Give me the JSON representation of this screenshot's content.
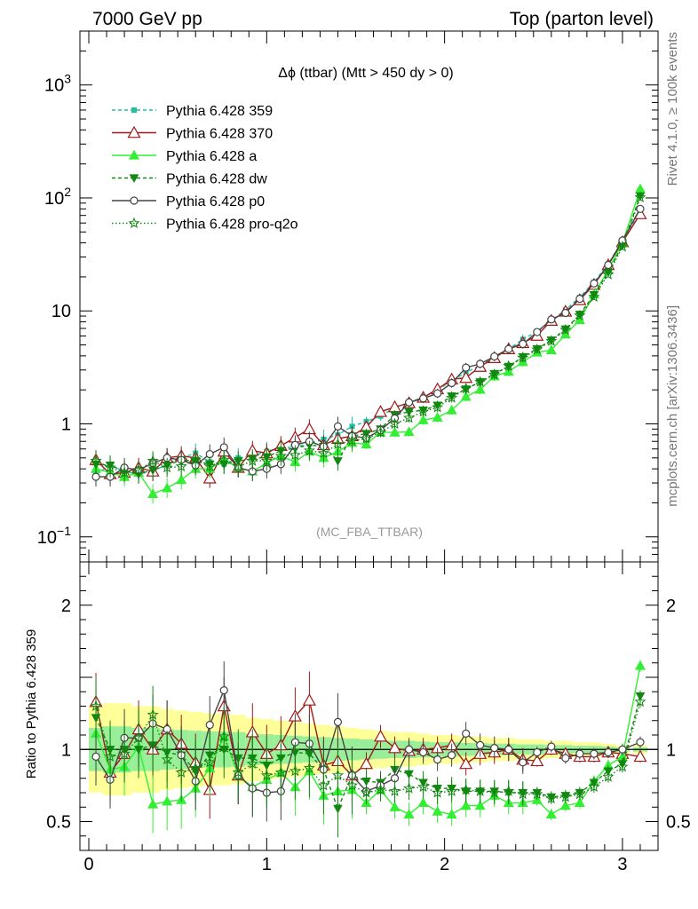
{
  "header": {
    "left": "7000 GeV pp",
    "right": "Top (parton level)"
  },
  "side_labels": {
    "rivet": "Rivet 4.1.0, ≥ 100k events",
    "mcplots": "mcplots.cern.ch [arXiv:1306.3436]"
  },
  "chart_data": {
    "type": "line",
    "title": "Δϕ (ttbar) (Mtt > 450 dy > 0)",
    "analysis_tag": "(MC_FBA_TTBAR)",
    "xlim": [
      -0.05,
      3.2
    ],
    "xticks": [
      0,
      1,
      2,
      3
    ],
    "top_panel": {
      "yscale": "log",
      "ylim": [
        0.06,
        3000
      ],
      "yticks": [
        {
          "value": 1000,
          "label": "10",
          "sup": "3"
        },
        {
          "value": 100,
          "label": "10",
          "sup": "2"
        },
        {
          "value": 10,
          "label": "10",
          "sup": ""
        },
        {
          "value": 1,
          "label": "1",
          "sup": ""
        },
        {
          "value": 0.1,
          "label": "10",
          "sup": "−1"
        }
      ]
    },
    "ratio_panel": {
      "ylabel": "Ratio to Pythia 6.428 359",
      "ylim": [
        0.3,
        2.3
      ],
      "yticks": [
        {
          "value": 0.5,
          "label": "0.5"
        },
        {
          "value": 1,
          "label": "1"
        },
        {
          "value": 2,
          "label": "2"
        }
      ]
    },
    "x": [
      0.04,
      0.12,
      0.2,
      0.28,
      0.36,
      0.44,
      0.52,
      0.6,
      0.68,
      0.76,
      0.84,
      0.92,
      1.0,
      1.08,
      1.16,
      1.24,
      1.32,
      1.4,
      1.48,
      1.56,
      1.64,
      1.72,
      1.8,
      1.88,
      1.96,
      2.04,
      2.12,
      2.2,
      2.28,
      2.36,
      2.44,
      2.52,
      2.6,
      2.68,
      2.76,
      2.84,
      2.92,
      3.0,
      3.1
    ],
    "band_halfwidth": [
      0.3,
      0.32,
      0.32,
      0.3,
      0.3,
      0.28,
      0.27,
      0.26,
      0.25,
      0.25,
      0.24,
      0.22,
      0.21,
      0.2,
      0.19,
      0.18,
      0.17,
      0.16,
      0.15,
      0.14,
      0.13,
      0.12,
      0.12,
      0.11,
      0.1,
      0.1,
      0.09,
      0.09,
      0.08,
      0.08,
      0.07,
      0.07,
      0.06,
      0.06,
      0.05,
      0.05,
      0.04,
      0.03,
      0.03
    ],
    "series": [
      {
        "name": "Pythia 6.428 359",
        "color": "#20c0a0",
        "dash": "4,3",
        "marker": "square",
        "values": [
          0.36,
          0.43,
          0.38,
          0.36,
          0.38,
          0.44,
          0.5,
          0.55,
          0.46,
          0.44,
          0.5,
          0.52,
          0.57,
          0.62,
          0.62,
          0.67,
          0.73,
          0.8,
          0.95,
          1.05,
          1.17,
          1.4,
          1.55,
          1.72,
          2.0,
          2.4,
          2.85,
          3.3,
          3.9,
          4.6,
          5.6,
          6.6,
          8.2,
          10.2,
          13.2,
          18.0,
          26.0,
          42.0,
          76.0
        ],
        "ratio": [
          1.0,
          1.0,
          1.0,
          1.0,
          1.0,
          1.0,
          1.0,
          1.0,
          1.0,
          1.0,
          1.0,
          1.0,
          1.0,
          1.0,
          1.0,
          1.0,
          1.0,
          1.0,
          1.0,
          1.0,
          1.0,
          1.0,
          1.0,
          1.0,
          1.0,
          1.0,
          1.0,
          1.0,
          1.0,
          1.0,
          1.0,
          1.0,
          1.0,
          1.0,
          1.0,
          1.0,
          1.0,
          1.0,
          1.0
        ]
      },
      {
        "name": "Pythia 6.428 370",
        "color": "#a01818",
        "dash": "",
        "marker": "triangle-open",
        "values": [
          0.48,
          0.36,
          0.37,
          0.41,
          0.38,
          0.5,
          0.52,
          0.5,
          0.33,
          0.57,
          0.41,
          0.58,
          0.55,
          0.64,
          0.76,
          0.9,
          0.65,
          0.74,
          0.78,
          0.94,
          1.28,
          1.41,
          1.53,
          1.71,
          2.03,
          2.48,
          2.56,
          3.21,
          3.84,
          4.6,
          5.2,
          6.05,
          8.2,
          9.9,
          12.5,
          17.1,
          25.5,
          40.7,
          72.0
        ],
        "ratio": [
          1.33,
          0.84,
          0.97,
          1.14,
          1.0,
          1.14,
          1.04,
          0.91,
          0.72,
          1.3,
          0.82,
          1.12,
          0.97,
          1.03,
          1.23,
          1.34,
          0.89,
          0.92,
          0.82,
          0.9,
          1.09,
          1.01,
          0.99,
          1.0,
          1.01,
          1.03,
          0.9,
          0.97,
          0.98,
          1.0,
          0.93,
          0.92,
          1.0,
          0.97,
          0.95,
          0.95,
          0.98,
          0.97,
          0.95
        ]
      },
      {
        "name": "Pythia 6.428 a",
        "color": "#33ee33",
        "dash": "",
        "marker": "triangle",
        "values": [
          0.4,
          0.37,
          0.34,
          0.37,
          0.24,
          0.27,
          0.32,
          0.4,
          0.4,
          0.48,
          0.41,
          0.38,
          0.45,
          0.52,
          0.46,
          0.57,
          0.5,
          0.57,
          0.68,
          0.66,
          0.84,
          0.84,
          0.85,
          1.08,
          1.14,
          1.32,
          1.74,
          2.01,
          2.64,
          2.9,
          3.53,
          4.29,
          4.5,
          6.2,
          8.3,
          14.0,
          23.0,
          40.0,
          120.0
        ],
        "ratio": [
          1.11,
          0.86,
          0.88,
          1.02,
          0.62,
          0.64,
          0.65,
          0.73,
          0.87,
          1.09,
          0.82,
          0.74,
          0.79,
          0.84,
          0.74,
          0.85,
          0.68,
          0.71,
          0.72,
          0.63,
          0.72,
          0.6,
          0.55,
          0.63,
          0.57,
          0.55,
          0.61,
          0.61,
          0.68,
          0.63,
          0.63,
          0.65,
          0.55,
          0.61,
          0.63,
          0.78,
          0.89,
          0.95,
          1.58
        ]
      },
      {
        "name": "Pythia 6.428 dw",
        "color": "#118811",
        "dash": "4,3",
        "marker": "triangle-down",
        "values": [
          0.44,
          0.43,
          0.38,
          0.36,
          0.39,
          0.43,
          0.48,
          0.47,
          0.44,
          0.44,
          0.47,
          0.49,
          0.51,
          0.58,
          0.61,
          0.65,
          0.63,
          0.47,
          0.78,
          0.82,
          0.9,
          1.2,
          1.28,
          1.32,
          1.46,
          1.76,
          2.03,
          2.35,
          2.78,
          3.22,
          3.92,
          4.62,
          5.5,
          6.9,
          9.3,
          13.9,
          22.0,
          38.0,
          104.0
        ],
        "ratio": [
          1.22,
          1.0,
          1.0,
          1.0,
          1.03,
          0.98,
          0.96,
          0.85,
          0.96,
          1.0,
          0.94,
          0.94,
          0.89,
          0.94,
          0.98,
          0.97,
          0.86,
          0.59,
          0.82,
          0.78,
          0.77,
          0.86,
          0.83,
          0.77,
          0.73,
          0.73,
          0.71,
          0.71,
          0.71,
          0.7,
          0.7,
          0.7,
          0.67,
          0.68,
          0.7,
          0.77,
          0.85,
          0.9,
          1.37
        ]
      },
      {
        "name": "Pythia 6.428 p0",
        "color": "#444444",
        "dash": "",
        "marker": "circle-open",
        "values": [
          0.34,
          0.34,
          0.41,
          0.39,
          0.45,
          0.5,
          0.48,
          0.43,
          0.54,
          0.62,
          0.41,
          0.38,
          0.4,
          0.44,
          0.65,
          0.7,
          0.63,
          0.95,
          0.78,
          0.75,
          0.88,
          1.12,
          1.55,
          1.68,
          1.86,
          2.3,
          3.15,
          3.4,
          3.95,
          4.6,
          5.1,
          6.5,
          8.4,
          9.6,
          12.8,
          17.5,
          25.5,
          42.0,
          80.0
        ],
        "ratio": [
          0.95,
          0.79,
          1.08,
          1.08,
          1.18,
          1.14,
          0.96,
          0.78,
          1.17,
          1.41,
          0.82,
          0.73,
          0.7,
          0.71,
          1.05,
          1.04,
          0.86,
          1.19,
          0.82,
          0.71,
          0.75,
          0.8,
          1.0,
          0.98,
          0.93,
          0.96,
          1.11,
          1.03,
          1.01,
          1.0,
          0.91,
          0.98,
          1.02,
          0.94,
          0.97,
          0.97,
          0.98,
          1.0,
          1.05
        ]
      },
      {
        "name": "Pythia 6.428 pro-q2o",
        "color": "#118811",
        "dash": "1.5,2.5",
        "marker": "star-open",
        "values": [
          0.47,
          0.41,
          0.37,
          0.39,
          0.47,
          0.41,
          0.42,
          0.48,
          0.42,
          0.48,
          0.42,
          0.47,
          0.47,
          0.52,
          0.53,
          0.58,
          0.55,
          0.66,
          0.71,
          0.74,
          0.84,
          1.0,
          1.13,
          1.28,
          1.4,
          1.7,
          2.05,
          2.35,
          2.73,
          3.25,
          3.85,
          4.55,
          5.4,
          6.8,
          9.1,
          13.3,
          21.0,
          37.0,
          101.0
        ],
        "ratio": [
          1.3,
          0.95,
          0.97,
          1.08,
          1.24,
          0.93,
          0.84,
          0.87,
          0.91,
          1.09,
          0.84,
          0.9,
          0.82,
          0.84,
          0.85,
          0.87,
          0.75,
          0.82,
          0.75,
          0.7,
          0.72,
          0.71,
          0.73,
          0.74,
          0.7,
          0.71,
          0.72,
          0.71,
          0.7,
          0.71,
          0.69,
          0.69,
          0.66,
          0.67,
          0.69,
          0.74,
          0.81,
          0.88,
          1.33
        ]
      }
    ]
  }
}
